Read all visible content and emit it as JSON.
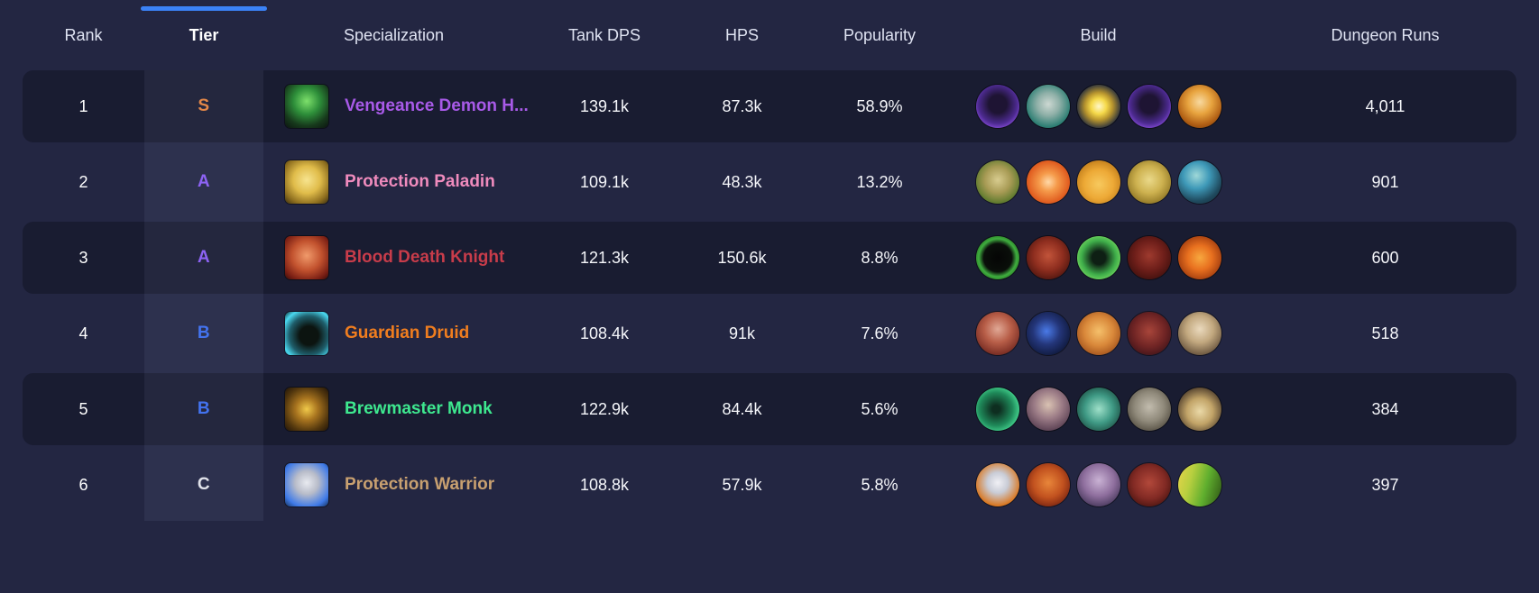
{
  "accent_color": "#3b82f6",
  "header": {
    "tier_bar_css": "background:#3b82f6",
    "columns": [
      {
        "label": "Rank"
      },
      {
        "label": "Tier"
      },
      {
        "label": "Specialization"
      },
      {
        "label": "Tank DPS"
      },
      {
        "label": "HPS"
      },
      {
        "label": "Popularity"
      },
      {
        "label": "Build"
      },
      {
        "label": "Dungeon Runs"
      }
    ]
  },
  "tier_colors": {
    "S": "#e8833c",
    "A": "#8b5cf6",
    "B": "#3b6ef0",
    "C": "#e5e7eb"
  },
  "rows": [
    {
      "rank": "1",
      "tier": "S",
      "tier_css": "color:#e8833c",
      "spec": "Vengeance Demon H...",
      "spec_css": "color:#a85ae8",
      "spec_icon_css": "background:radial-gradient(circle at 50% 38%, #7de06b 0%, #2e8f3a 38%, #173a1c 72%, #0c1410 100%)",
      "tank_dps": "139.1k",
      "hps": "87.3k",
      "popularity": "58.9%",
      "runs": "4,011",
      "build": [
        "background:radial-gradient(circle at 50% 45%, #1e1433 28%, #4c2a8f 60%, #8b4fe0 80%, #2a1048 100%)",
        "background:radial-gradient(circle at 50% 45%, #cdd8d2 0%, #8fb0a8 35%, #2e7f74 70%, #16343c 100%)",
        "background:radial-gradient(circle at 50% 50%, #fff7c9 0%, #f5d94a 25%, #b8952e 45%, #13203f 78%, #0c1630 100%)",
        "background:radial-gradient(circle at 50% 45%, #1e1433 28%, #4c2a8f 60%, #8b4fe0 80%, #2a1048 100%)",
        "background:radial-gradient(circle at 50% 40%, #f7d9a0 0%, #e8a43f 35%, #b05e14 68%, #5e2a08 100%)"
      ]
    },
    {
      "rank": "2",
      "tier": "A",
      "tier_css": "color:#8b5cf6",
      "spec": "Protection Paladin",
      "spec_css": "color:#ef8bbd",
      "spec_icon_css": "background:radial-gradient(circle at 50% 45%, #f7e48f 0%, #e0bc4a 42%, #8f6f1f 76%, #3a2e10 100%)",
      "tank_dps": "109.1k",
      "hps": "48.3k",
      "popularity": "13.2%",
      "runs": "901",
      "build": [
        "background:radial-gradient(circle at 50% 45%, #d8cc8f 0%, #a89b55 40%, #5f7a2e 72%, #243a14 100%)",
        "background:radial-gradient(circle at 50% 50%, #ffd9a8 0%, #f59a4a 30%, #e05c1f 68%, #8a2e14 100%)",
        "background:radial-gradient(circle at 50% 55%, #f7c95e 0%, #eda936 45%, #c27d1a 78%, #7a4a10 100%)",
        "background:radial-gradient(circle at 50% 45%, #ead98a 0%, #cdb14f 42%, #8f7524 78%, #4a3a12 100%)",
        "background:radial-gradient(circle at 42% 35%, #9fd8d8 0%, #3e99b8 35%, #1f4a5e 68%, #132430 100%)"
      ]
    },
    {
      "rank": "3",
      "tier": "A",
      "tier_css": "color:#8b5cf6",
      "spec": "Blood Death Knight",
      "spec_css": "color:#c83c4a",
      "spec_icon_css": "background:radial-gradient(circle at 50% 45%, #f09a6b 0%, #c2522e 46%, #7a1f14 80%, #330c08 100%)",
      "tank_dps": "121.3k",
      "hps": "150.6k",
      "popularity": "8.8%",
      "runs": "600",
      "build": [
        "background:radial-gradient(circle at 50% 50%, #050505 0%, #0a0f0a 46%, #3fae3f 62%, #2a7a24 76%, #10240e 100%)",
        "background:radial-gradient(circle at 50% 45%, #c2543a 0%, #8f2e1f 45%, #4a140e 82%, #240806 100%)",
        "background:radial-gradient(circle at 50% 50%, #0e1f14 22%, #3fae4a 56%, #6fd45e 76%, #1c4a1e 100%)",
        "background:radial-gradient(circle at 50% 45%, #9e3a2e 0%, #6f1f1a 45%, #3a0e0c 85%, #1e0606 100%)",
        "background:radial-gradient(circle at 50% 50%, #f7a83f 0%, #e8701f 40%, #9e3a0e 78%, #3e1406 100%)"
      ]
    },
    {
      "rank": "4",
      "tier": "B",
      "tier_css": "color:#3b6ef0",
      "spec": "Guardian Druid",
      "spec_css": "color:#ef7d1f",
      "spec_icon_css": "background:radial-gradient(circle at 55% 55%, #0c1410 28%, #1f5e6b 58%, #4ad9f0 80%, #0e3038 100%)",
      "tank_dps": "108.4k",
      "hps": "91k",
      "popularity": "7.6%",
      "runs": "518",
      "build": [
        "background:radial-gradient(circle at 50% 40%, #e0a895 0%, #b85e48 40%, #7a2e24 76%, #3a1410 100%)",
        "background:radial-gradient(circle at 46% 45%, #4a7ae8 0%, #24367a 40%, #101a3e 76%, #0a1028 100%)",
        "background:radial-gradient(circle at 50% 45%, #f5c06b 0%, #d9883a 45%, #a8581f 76%, #5e2e10 100%)",
        "background:radial-gradient(circle at 50% 45%, #a8453a 0%, #6f2424 50%, #3a1218 85%, #200a10 100%)",
        "background:radial-gradient(circle at 50% 40%, #ead9bd 0%, #c2a87f 40%, #6f5a42 76%, #2e2418 100%)"
      ]
    },
    {
      "rank": "5",
      "tier": "B",
      "tier_css": "color:#3b6ef0",
      "spec": "Brewmaster Monk",
      "spec_css": "color:#3ee88f",
      "spec_icon_css": "background:radial-gradient(circle at 50% 50%, #f0c94a 0%, #a8741f 36%, #54380e 72%, #201408 100%)",
      "tank_dps": "122.9k",
      "hps": "84.4k",
      "popularity": "5.6%",
      "runs": "384",
      "build": [
        "background:radial-gradient(circle at 46% 50%, #0e2e20 12%, #1f8a5a 52%, #3fc987 72%, #0c2418 100%)",
        "background:radial-gradient(circle at 50% 40%, #d9c2b2 0%, #9a7a85 42%, #5e4456 76%, #2a1e2e 100%)",
        "background:radial-gradient(circle at 50% 50%, #9fe0c9 0%, #3f9a85 46%, #1f5448 80%, #0e2a24 100%)",
        "background:radial-gradient(circle at 50% 45%, #c2bcae 0%, #8f897a 46%, #544e42 80%, #2a2620 100%)",
        "background:radial-gradient(circle at 50% 55%, #ead9a8 0%, #c2a468 40%, #54422e 76%, #1c1824 100%)"
      ]
    },
    {
      "rank": "6",
      "tier": "C",
      "tier_css": "color:#e5e7eb",
      "spec": "Protection Warrior",
      "spec_css": "color:#c8a070",
      "spec_icon_css": "background:radial-gradient(circle at 50% 45%, #e8eaf0 0%, #b8bcc9 36%, #3f7ae8 76%, #16335e 100%)",
      "tank_dps": "108.8k",
      "hps": "57.9k",
      "popularity": "5.8%",
      "runs": "397",
      "build": [
        "background:radial-gradient(circle at 50% 45%, #f0f0f5 0%, #c9ccd6 32%, #d9761f 72%, #8f4210 100%)",
        "background:radial-gradient(circle at 50% 45%, #e8863a 0%, #c2521f 46%, #7a2410 80%, #3a1008 100%)",
        "background:radial-gradient(circle at 50% 40%, #c9b2d4 0%, #8f6f9e 46%, #4a3a5e 80%, #241a30 100%)",
        "background:radial-gradient(circle at 50% 45%, #b2483a 0%, #822a24 50%, #44120e 85%, #240808 100%)",
        "background:linear-gradient(105deg, #e8d44a 0%, #b8cf3f 30%, #5fae2e 62%, #2e5414 100%)"
      ]
    }
  ]
}
